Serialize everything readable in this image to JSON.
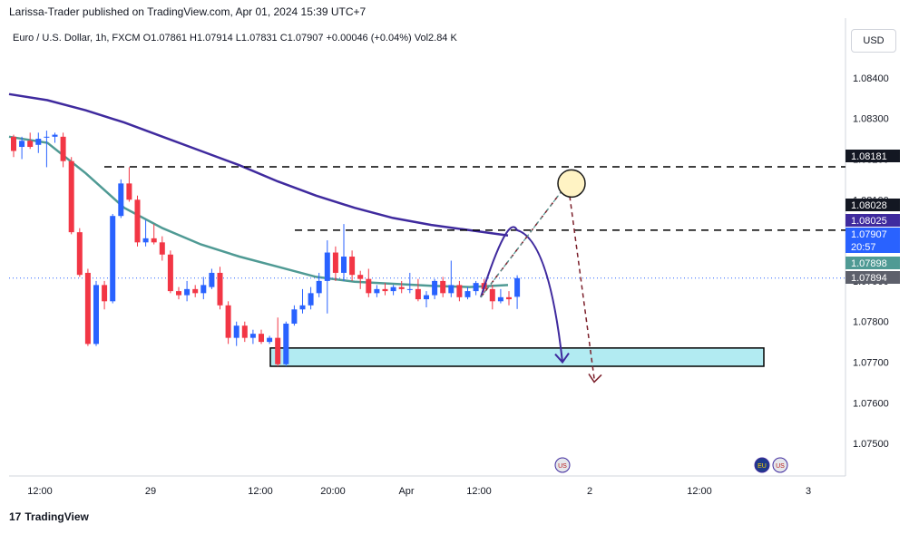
{
  "header": {
    "publisher": "Larissa-Trader published on TradingView.com, Apr 01, 2024 15:39 UTC+7",
    "symbol_line": "Euro / U.S. Dollar, 1h, FXCM  O1.07861  H1.07914  L1.07831  C1.07907  +0.00046 (+0.04%)  Vol2.84 K",
    "currency": "USD"
  },
  "footer": {
    "brand": "TradingView",
    "brand_mark": "17"
  },
  "colors": {
    "up": "#2962ff",
    "down": "#f23645",
    "ema_slow": "#3f2a9e",
    "ema_fast": "#4f9a94",
    "zone_fill": "#b2ebf2",
    "projection": "#3f2a9e",
    "alt_projection": "#7b1f2a"
  },
  "chart_data": {
    "type": "candlestick",
    "symbol": "Euro / U.S. Dollar",
    "interval": "1h",
    "ylim": [
      1.0742,
      1.0848
    ],
    "y_ticks": [
      "1.08400",
      "1.08300",
      "1.08200",
      "1.08100",
      "1.08000",
      "1.07900",
      "1.07800",
      "1.07700",
      "1.07600",
      "1.07500"
    ],
    "x_ticks": [
      "12:00",
      "29",
      "12:00",
      "20:00",
      "Apr",
      "12:00",
      "2",
      "12:00",
      "3"
    ],
    "price_labels": [
      {
        "text": "1.08181",
        "value": 1.08181,
        "color": "#131722"
      },
      {
        "text": "1.08028",
        "value": 1.08028,
        "color": "#131722"
      },
      {
        "text": "1.08025",
        "value": 1.08025,
        "color": "#3f2a9e"
      },
      {
        "text": "1.07907",
        "value": 1.07907,
        "color": "#2962ff"
      },
      {
        "text": "20:57",
        "value": 1.07885,
        "color": "#2962ff"
      },
      {
        "text": "1.07898",
        "value": 1.07898,
        "color": "#4f9a94"
      },
      {
        "text": "1.07894",
        "value": 1.07894,
        "color": "#5d606b"
      }
    ],
    "candles": [
      {
        "o": 1.08255,
        "h": 1.0826,
        "l": 1.08205,
        "c": 1.0822
      },
      {
        "o": 1.0823,
        "h": 1.08255,
        "l": 1.082,
        "c": 1.08245
      },
      {
        "o": 1.08245,
        "h": 1.08265,
        "l": 1.08225,
        "c": 1.0823
      },
      {
        "o": 1.08235,
        "h": 1.08265,
        "l": 1.08215,
        "c": 1.0825
      },
      {
        "o": 1.08255,
        "h": 1.0827,
        "l": 1.0818,
        "c": 1.08255
      },
      {
        "o": 1.08255,
        "h": 1.08265,
        "l": 1.0824,
        "c": 1.0826
      },
      {
        "o": 1.08255,
        "h": 1.08265,
        "l": 1.0818,
        "c": 1.08195
      },
      {
        "o": 1.08195,
        "h": 1.08205,
        "l": 1.08015,
        "c": 1.0802
      },
      {
        "o": 1.0802,
        "h": 1.0803,
        "l": 1.0791,
        "c": 1.07915
      },
      {
        "o": 1.0792,
        "h": 1.0793,
        "l": 1.0774,
        "c": 1.07745
      },
      {
        "o": 1.07745,
        "h": 1.079,
        "l": 1.0774,
        "c": 1.0789
      },
      {
        "o": 1.0789,
        "h": 1.079,
        "l": 1.0783,
        "c": 1.0785
      },
      {
        "o": 1.0785,
        "h": 1.08065,
        "l": 1.07845,
        "c": 1.0806
      },
      {
        "o": 1.0806,
        "h": 1.0815,
        "l": 1.08055,
        "c": 1.0814
      },
      {
        "o": 1.0814,
        "h": 1.0818,
        "l": 1.08095,
        "c": 1.081
      },
      {
        "o": 1.081,
        "h": 1.0811,
        "l": 1.07985,
        "c": 1.07995
      },
      {
        "o": 1.07995,
        "h": 1.0805,
        "l": 1.07985,
        "c": 1.08005
      },
      {
        "o": 1.08005,
        "h": 1.0804,
        "l": 1.0799,
        "c": 1.07995
      },
      {
        "o": 1.07995,
        "h": 1.0801,
        "l": 1.0795,
        "c": 1.07965
      },
      {
        "o": 1.07965,
        "h": 1.07975,
        "l": 1.0787,
        "c": 1.07875
      },
      {
        "o": 1.07875,
        "h": 1.07885,
        "l": 1.07855,
        "c": 1.07865
      },
      {
        "o": 1.07865,
        "h": 1.079,
        "l": 1.0785,
        "c": 1.0788
      },
      {
        "o": 1.0788,
        "h": 1.0789,
        "l": 1.0786,
        "c": 1.0787
      },
      {
        "o": 1.0787,
        "h": 1.0791,
        "l": 1.07855,
        "c": 1.0789
      },
      {
        "o": 1.07885,
        "h": 1.0793,
        "l": 1.0788,
        "c": 1.0792
      },
      {
        "o": 1.0792,
        "h": 1.07935,
        "l": 1.0783,
        "c": 1.0784
      },
      {
        "o": 1.0784,
        "h": 1.0785,
        "l": 1.07745,
        "c": 1.0776
      },
      {
        "o": 1.0776,
        "h": 1.078,
        "l": 1.0774,
        "c": 1.0779
      },
      {
        "o": 1.0779,
        "h": 1.078,
        "l": 1.0775,
        "c": 1.0776
      },
      {
        "o": 1.0776,
        "h": 1.0778,
        "l": 1.07745,
        "c": 1.0777
      },
      {
        "o": 1.0777,
        "h": 1.0778,
        "l": 1.07745,
        "c": 1.0775
      },
      {
        "o": 1.0775,
        "h": 1.07765,
        "l": 1.07745,
        "c": 1.0776
      },
      {
        "o": 1.0776,
        "h": 1.0781,
        "l": 1.0769,
        "c": 1.07695
      },
      {
        "o": 1.07695,
        "h": 1.078,
        "l": 1.0769,
        "c": 1.07795
      },
      {
        "o": 1.07795,
        "h": 1.0784,
        "l": 1.0779,
        "c": 1.0783
      },
      {
        "o": 1.0783,
        "h": 1.0788,
        "l": 1.0782,
        "c": 1.0784
      },
      {
        "o": 1.0784,
        "h": 1.07885,
        "l": 1.0783,
        "c": 1.0787
      },
      {
        "o": 1.0787,
        "h": 1.0792,
        "l": 1.0786,
        "c": 1.079
      },
      {
        "o": 1.079,
        "h": 1.08,
        "l": 1.0782,
        "c": 1.0797
      },
      {
        "o": 1.0797,
        "h": 1.07985,
        "l": 1.079,
        "c": 1.0792
      },
      {
        "o": 1.0792,
        "h": 1.0804,
        "l": 1.079,
        "c": 1.0796
      },
      {
        "o": 1.0796,
        "h": 1.07975,
        "l": 1.079,
        "c": 1.07915
      },
      {
        "o": 1.07915,
        "h": 1.07925,
        "l": 1.0788,
        "c": 1.07905
      },
      {
        "o": 1.07905,
        "h": 1.0793,
        "l": 1.0786,
        "c": 1.0787
      },
      {
        "o": 1.0787,
        "h": 1.0789,
        "l": 1.0786,
        "c": 1.0788
      },
      {
        "o": 1.0788,
        "h": 1.07895,
        "l": 1.07865,
        "c": 1.07875
      },
      {
        "o": 1.07875,
        "h": 1.0789,
        "l": 1.07865,
        "c": 1.07885
      },
      {
        "o": 1.07885,
        "h": 1.079,
        "l": 1.0787,
        "c": 1.0788
      },
      {
        "o": 1.0788,
        "h": 1.0792,
        "l": 1.0787,
        "c": 1.0788
      },
      {
        "o": 1.0788,
        "h": 1.07905,
        "l": 1.0785,
        "c": 1.07855
      },
      {
        "o": 1.07855,
        "h": 1.07875,
        "l": 1.07835,
        "c": 1.07865
      },
      {
        "o": 1.07865,
        "h": 1.07905,
        "l": 1.07855,
        "c": 1.079
      },
      {
        "o": 1.079,
        "h": 1.0791,
        "l": 1.0786,
        "c": 1.0787
      },
      {
        "o": 1.0787,
        "h": 1.0795,
        "l": 1.0786,
        "c": 1.0789
      },
      {
        "o": 1.0789,
        "h": 1.079,
        "l": 1.0785,
        "c": 1.0786
      },
      {
        "o": 1.0786,
        "h": 1.07885,
        "l": 1.07855,
        "c": 1.07875
      },
      {
        "o": 1.07875,
        "h": 1.079,
        "l": 1.07865,
        "c": 1.07895
      },
      {
        "o": 1.07895,
        "h": 1.07905,
        "l": 1.0787,
        "c": 1.0788
      },
      {
        "o": 1.0788,
        "h": 1.0789,
        "l": 1.0783,
        "c": 1.0785
      },
      {
        "o": 1.0785,
        "h": 1.0788,
        "l": 1.07845,
        "c": 1.0786
      },
      {
        "o": 1.0786,
        "h": 1.07875,
        "l": 1.0784,
        "c": 1.07855
      },
      {
        "o": 1.07861,
        "h": 1.07914,
        "l": 1.07831,
        "c": 1.07907
      }
    ],
    "ema_slow": [
      1.0836,
      1.08345,
      1.0832,
      1.0829,
      1.08255,
      1.0822,
      1.08185,
      1.08145,
      1.0811,
      1.0808,
      1.08055,
      1.08038,
      1.08025,
      1.08012
    ],
    "ema_fast": [
      1.08255,
      1.0824,
      1.08165,
      1.0808,
      1.0803,
      1.0799,
      1.0796,
      1.07935,
      1.0791,
      1.07898,
      1.07893,
      1.07888,
      1.07885,
      1.0789
    ],
    "horizontal_levels": [
      1.08181,
      1.08025
    ],
    "demand_zone": {
      "low": 1.0769,
      "high": 1.07735
    },
    "projection_main": [
      [
        1.0786,
        "start"
      ],
      [
        1.08025,
        "peak"
      ],
      [
        1.077,
        "target"
      ]
    ],
    "projection_alt": [
      [
        1.0786,
        "start"
      ],
      [
        1.0814,
        "peak"
      ],
      [
        1.0766,
        "target"
      ]
    ],
    "events": [
      {
        "glyph": "US",
        "at": "Apr 1 evening"
      },
      {
        "glyph": "EU",
        "at": "Apr 2 afternoon"
      },
      {
        "glyph": "US",
        "at": "Apr 2 afternoon"
      }
    ]
  }
}
